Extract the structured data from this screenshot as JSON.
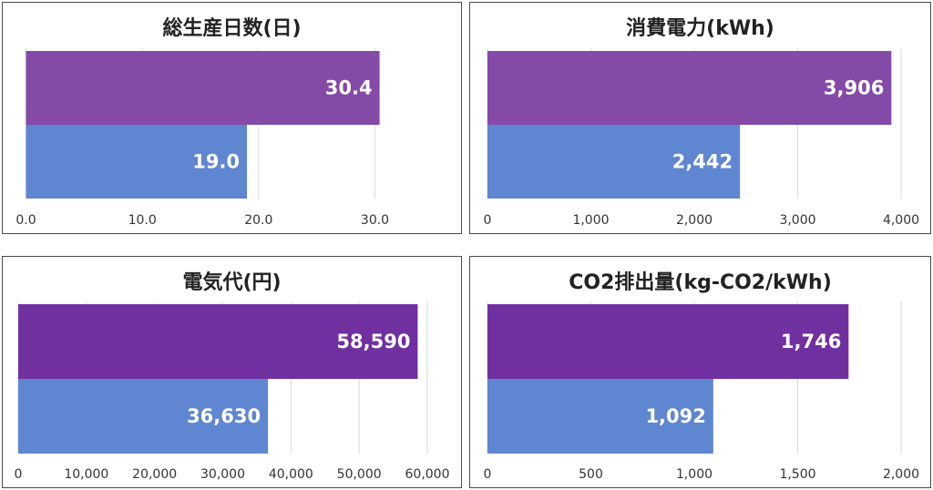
{
  "chart_data": [
    {
      "type": "bar",
      "orientation": "horizontal",
      "title": "総生産日数(日)",
      "values": [
        30.4,
        19.0
      ],
      "value_labels": [
        "30.4",
        "19.0"
      ],
      "colors": [
        "#8549a7",
        "#5f86d1"
      ],
      "xlim": [
        0,
        30.0
      ],
      "xticks": [
        0,
        10,
        20,
        30
      ],
      "xtick_labels": [
        "0.0",
        "10.0",
        "20.0",
        "30.0"
      ],
      "grid": true
    },
    {
      "type": "bar",
      "orientation": "horizontal",
      "title": "消費電力(kWh)",
      "values": [
        3906,
        2442
      ],
      "value_labels": [
        "3,906",
        "2,442"
      ],
      "colors": [
        "#8549a7",
        "#5f86d1"
      ],
      "xlim": [
        0,
        4000
      ],
      "xticks": [
        0,
        1000,
        2000,
        3000,
        4000
      ],
      "xtick_labels": [
        "0",
        "1,000",
        "2,000",
        "3,000",
        "4,000"
      ],
      "grid": true
    },
    {
      "type": "bar",
      "orientation": "horizontal",
      "title": "電気代(円)",
      "values": [
        58590,
        36630
      ],
      "value_labels": [
        "58,590",
        "36,630"
      ],
      "colors": [
        "#7030a0",
        "#5f86d1"
      ],
      "xlim": [
        0,
        60000
      ],
      "xticks": [
        0,
        10000,
        20000,
        30000,
        40000,
        50000,
        60000
      ],
      "xtick_labels": [
        "0",
        "10,000",
        "20,000",
        "30,000",
        "40,000",
        "50,000",
        "60,000"
      ],
      "grid": true
    },
    {
      "type": "bar",
      "orientation": "horizontal",
      "title": "CO2排出量(kg-CO2/kWh)",
      "values": [
        1746,
        1092
      ],
      "value_labels": [
        "1,746",
        "1,092"
      ],
      "colors": [
        "#7030a0",
        "#5f86d1"
      ],
      "xlim": [
        0,
        2000
      ],
      "xticks": [
        0,
        500,
        1000,
        1500,
        2000
      ],
      "xtick_labels": [
        "0",
        "500",
        "1,000",
        "1,500",
        "2,000"
      ],
      "grid": true
    }
  ]
}
